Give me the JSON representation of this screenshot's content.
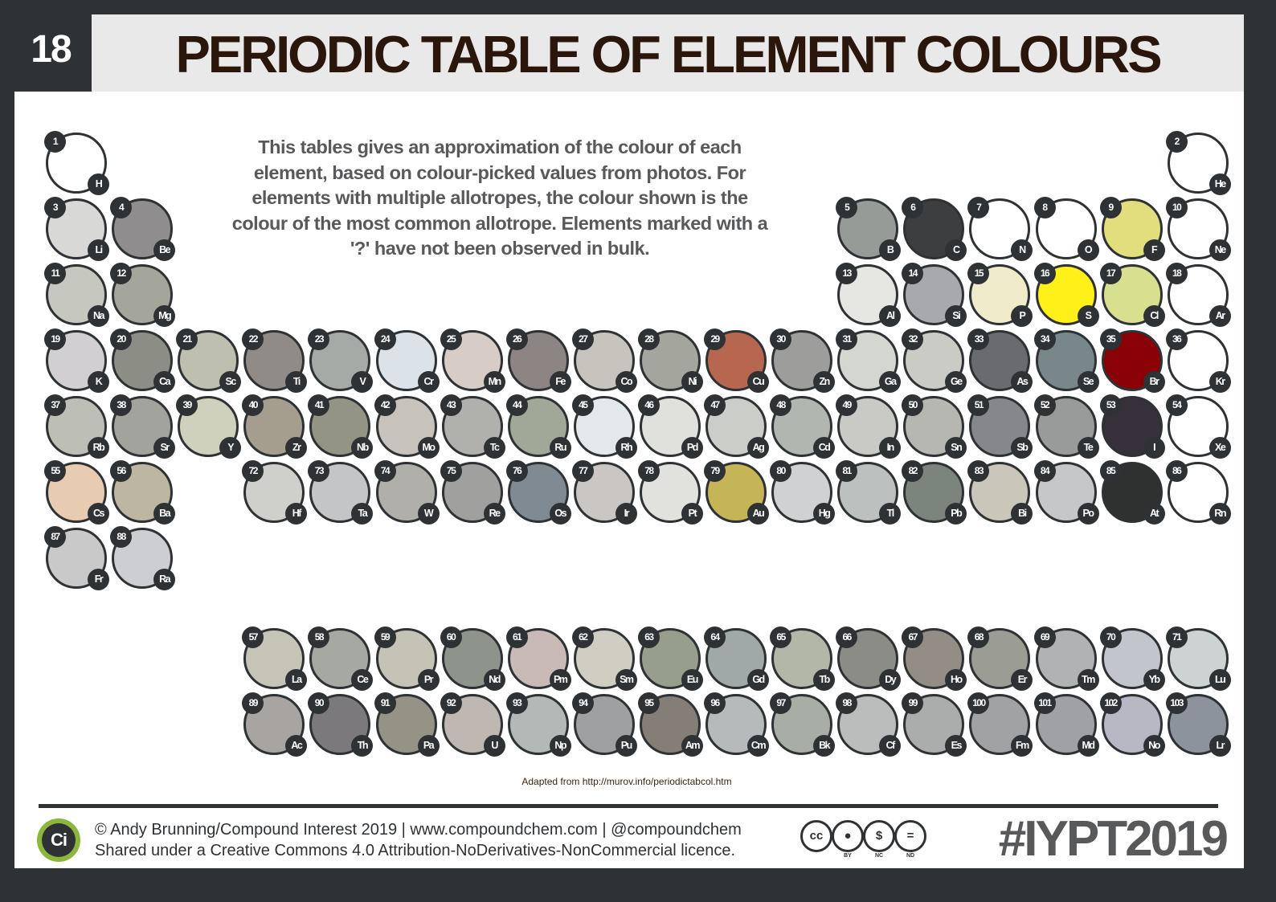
{
  "header": {
    "number": "18",
    "title": "PERIODIC TABLE OF ELEMENT COLOURS"
  },
  "description": "This tables gives an approximation of the colour of each element, based on colour-picked values from photos. For elements with multiple allotropes, the colour shown is the colour of the most common allotrope. Elements marked with a '?' have not been observed in bulk.",
  "source": "Adapted from http://murov.info/periodictabcol.htm",
  "footer": {
    "logo_text": "Ci",
    "credit_line1": "© Andy Brunning/Compound Interest 2019 | www.compoundchem.com | @compoundchem",
    "credit_line2": "Shared under a Creative Commons 4.0 Attribution-NoDerivatives-NonCommercial licence.",
    "cc_icons": [
      {
        "icon": "cc-icon",
        "glyph": "cc",
        "label": ""
      },
      {
        "icon": "by-icon",
        "glyph": "●",
        "label": "BY"
      },
      {
        "icon": "nc-icon",
        "glyph": "$",
        "label": "NC"
      },
      {
        "icon": "nd-icon",
        "glyph": "=",
        "label": "ND"
      }
    ],
    "hashtag": "#IYPT2019"
  },
  "elements": [
    {
      "n": "1",
      "s": "H",
      "c": "#ffffff",
      "r": 1,
      "g": 1
    },
    {
      "n": "2",
      "s": "He",
      "c": "#ffffff",
      "r": 1,
      "g": 18
    },
    {
      "n": "3",
      "s": "Li",
      "c": "#d8d8d6",
      "r": 2,
      "g": 1
    },
    {
      "n": "4",
      "s": "Be",
      "c": "#8f8d8e",
      "r": 2,
      "g": 2
    },
    {
      "n": "5",
      "s": "B",
      "c": "#979b98",
      "r": 2,
      "g": 13
    },
    {
      "n": "6",
      "s": "C",
      "c": "#3c3e40",
      "r": 2,
      "g": 14
    },
    {
      "n": "7",
      "s": "N",
      "c": "#ffffff",
      "r": 2,
      "g": 15
    },
    {
      "n": "8",
      "s": "O",
      "c": "#ffffff",
      "r": 2,
      "g": 16
    },
    {
      "n": "9",
      "s": "F",
      "c": "#e2dd7d",
      "r": 2,
      "g": 17
    },
    {
      "n": "10",
      "s": "Ne",
      "c": "#ffffff",
      "r": 2,
      "g": 18
    },
    {
      "n": "11",
      "s": "Na",
      "c": "#c6c8c0",
      "r": 3,
      "g": 1
    },
    {
      "n": "12",
      "s": "Mg",
      "c": "#a5a69b",
      "r": 3,
      "g": 2
    },
    {
      "n": "13",
      "s": "Al",
      "c": "#e6e7e3",
      "r": 3,
      "g": 13
    },
    {
      "n": "14",
      "s": "Si",
      "c": "#a7a9ac",
      "r": 3,
      "g": 14
    },
    {
      "n": "15",
      "s": "P",
      "c": "#f0eccb",
      "r": 3,
      "g": 15
    },
    {
      "n": "16",
      "s": "S",
      "c": "#fff01a",
      "r": 3,
      "g": 16
    },
    {
      "n": "17",
      "s": "Cl",
      "c": "#d8e090",
      "r": 3,
      "g": 17
    },
    {
      "n": "18",
      "s": "Ar",
      "c": "#ffffff",
      "r": 3,
      "g": 18
    },
    {
      "n": "19",
      "s": "K",
      "c": "#d2cfd3",
      "r": 4,
      "g": 1
    },
    {
      "n": "20",
      "s": "Ca",
      "c": "#8c8e86",
      "r": 4,
      "g": 2
    },
    {
      "n": "21",
      "s": "Sc",
      "c": "#bebfae",
      "r": 4,
      "g": 3
    },
    {
      "n": "22",
      "s": "Ti",
      "c": "#918b88",
      "r": 4,
      "g": 4
    },
    {
      "n": "23",
      "s": "V",
      "c": "#a6aaa6",
      "r": 4,
      "g": 5
    },
    {
      "n": "24",
      "s": "Cr",
      "c": "#dbe3e9",
      "r": 4,
      "g": 6
    },
    {
      "n": "25",
      "s": "Mn",
      "c": "#d8cdc6",
      "r": 4,
      "g": 7
    },
    {
      "n": "26",
      "s": "Fe",
      "c": "#8d8584",
      "r": 4,
      "g": 8
    },
    {
      "n": "27",
      "s": "Co",
      "c": "#c7c3bd",
      "r": 4,
      "g": 9
    },
    {
      "n": "28",
      "s": "Ni",
      "c": "#a4a59d",
      "r": 4,
      "g": 10
    },
    {
      "n": "29",
      "s": "Cu",
      "c": "#b7664f",
      "r": 4,
      "g": 11
    },
    {
      "n": "30",
      "s": "Zn",
      "c": "#9d9e9c",
      "r": 4,
      "g": 12
    },
    {
      "n": "31",
      "s": "Ga",
      "c": "#d4d6d0",
      "r": 4,
      "g": 13
    },
    {
      "n": "32",
      "s": "Ge",
      "c": "#cbcbc6",
      "r": 4,
      "g": 14
    },
    {
      "n": "33",
      "s": "As",
      "c": "#6a6b6e",
      "r": 4,
      "g": 15
    },
    {
      "n": "34",
      "s": "Se",
      "c": "#78888a",
      "r": 4,
      "g": 16
    },
    {
      "n": "35",
      "s": "Br",
      "c": "#8a0007",
      "r": 4,
      "g": 17
    },
    {
      "n": "36",
      "s": "Kr",
      "c": "#ffffff",
      "r": 4,
      "g": 18
    },
    {
      "n": "37",
      "s": "Rb",
      "c": "#bdbfb7",
      "r": 5,
      "g": 1
    },
    {
      "n": "38",
      "s": "Sr",
      "c": "#a2a39c",
      "r": 5,
      "g": 2
    },
    {
      "n": "39",
      "s": "Y",
      "c": "#cfd1bd",
      "r": 5,
      "g": 3
    },
    {
      "n": "40",
      "s": "Zr",
      "c": "#a59e8e",
      "r": 5,
      "g": 4
    },
    {
      "n": "41",
      "s": "Nb",
      "c": "#949485",
      "r": 5,
      "g": 5
    },
    {
      "n": "42",
      "s": "Mo",
      "c": "#c8c2bd",
      "r": 5,
      "g": 6
    },
    {
      "n": "43",
      "s": "Tc",
      "c": "#b0b1ad",
      "r": 5,
      "g": 7
    },
    {
      "n": "44",
      "s": "Ru",
      "c": "#a1a898",
      "r": 5,
      "g": 8
    },
    {
      "n": "45",
      "s": "Rh",
      "c": "#e3e9ea",
      "r": 5,
      "g": 9
    },
    {
      "n": "46",
      "s": "Pd",
      "c": "#e0e1dd",
      "r": 5,
      "g": 10
    },
    {
      "n": "47",
      "s": "Ag",
      "c": "#cbcdc8",
      "r": 5,
      "g": 11
    },
    {
      "n": "48",
      "s": "Cd",
      "c": "#b2b6b0",
      "r": 5,
      "g": 12
    },
    {
      "n": "49",
      "s": "In",
      "c": "#c9cac6",
      "r": 5,
      "g": 13
    },
    {
      "n": "50",
      "s": "Sn",
      "c": "#b5b7b0",
      "r": 5,
      "g": 14
    },
    {
      "n": "51",
      "s": "Sb",
      "c": "#85878b",
      "r": 5,
      "g": 15
    },
    {
      "n": "52",
      "s": "Te",
      "c": "#989b9a",
      "r": 5,
      "g": 16
    },
    {
      "n": "53",
      "s": "I",
      "c": "#36303b",
      "r": 5,
      "g": 17
    },
    {
      "n": "54",
      "s": "Xe",
      "c": "#ffffff",
      "r": 5,
      "g": 18
    },
    {
      "n": "55",
      "s": "Cs",
      "c": "#e8ccb2",
      "r": 6,
      "g": 1
    },
    {
      "n": "56",
      "s": "Ba",
      "c": "#bdb6a2",
      "r": 6,
      "g": 2
    },
    {
      "n": "72",
      "s": "Hf",
      "c": "#cfcfcc",
      "r": 6,
      "g": 4
    },
    {
      "n": "73",
      "s": "Ta",
      "c": "#c4c5c7",
      "r": 6,
      "g": 5
    },
    {
      "n": "74",
      "s": "W",
      "c": "#b0afaa",
      "r": 6,
      "g": 6
    },
    {
      "n": "75",
      "s": "Re",
      "c": "#a0a09e",
      "r": 6,
      "g": 7
    },
    {
      "n": "76",
      "s": "Os",
      "c": "#7f8a93",
      "r": 6,
      "g": 8
    },
    {
      "n": "77",
      "s": "Ir",
      "c": "#cac6c4",
      "r": 6,
      "g": 9
    },
    {
      "n": "78",
      "s": "Pt",
      "c": "#e1e2dd",
      "r": 6,
      "g": 10
    },
    {
      "n": "79",
      "s": "Au",
      "c": "#c6b556",
      "r": 6,
      "g": 11
    },
    {
      "n": "80",
      "s": "Hg",
      "c": "#d0d1d3",
      "r": 6,
      "g": 12
    },
    {
      "n": "81",
      "s": "Tl",
      "c": "#bcc0be",
      "r": 6,
      "g": 13
    },
    {
      "n": "82",
      "s": "Pb",
      "c": "#7c847e",
      "r": 6,
      "g": 14
    },
    {
      "n": "83",
      "s": "Bi",
      "c": "#cbc6ba",
      "r": 6,
      "g": 15
    },
    {
      "n": "84",
      "s": "Po",
      "c": "#c6c7c9",
      "r": 6,
      "g": 16
    },
    {
      "n": "85",
      "s": "At",
      "c": "#2f3130",
      "r": 6,
      "g": 17
    },
    {
      "n": "86",
      "s": "Rn",
      "c": "#ffffff",
      "r": 6,
      "g": 18
    },
    {
      "n": "87",
      "s": "Fr",
      "c": "#c9c9c9",
      "r": 7,
      "g": 1
    },
    {
      "n": "88",
      "s": "Ra",
      "c": "#ccced1",
      "r": 7,
      "g": 2
    },
    {
      "n": "57",
      "s": "La",
      "c": "#c6c4b6",
      "r": 9,
      "g": 4
    },
    {
      "n": "58",
      "s": "Ce",
      "c": "#a6a9a1",
      "r": 9,
      "g": 5
    },
    {
      "n": "59",
      "s": "Pr",
      "c": "#c5c3b6",
      "r": 9,
      "g": 6
    },
    {
      "n": "60",
      "s": "Nd",
      "c": "#8e938c",
      "r": 9,
      "g": 7
    },
    {
      "n": "61",
      "s": "Pm",
      "c": "#c9bab8",
      "r": 9,
      "g": 8
    },
    {
      "n": "62",
      "s": "Sm",
      "c": "#d0cdc2",
      "r": 9,
      "g": 9
    },
    {
      "n": "63",
      "s": "Eu",
      "c": "#979e8c",
      "r": 9,
      "g": 10
    },
    {
      "n": "64",
      "s": "Gd",
      "c": "#a1a8a8",
      "r": 9,
      "g": 11
    },
    {
      "n": "65",
      "s": "Tb",
      "c": "#b3b7a7",
      "r": 9,
      "g": 12
    },
    {
      "n": "66",
      "s": "Dy",
      "c": "#8a8c85",
      "r": 9,
      "g": 13
    },
    {
      "n": "67",
      "s": "Ho",
      "c": "#938d86",
      "r": 9,
      "g": 14
    },
    {
      "n": "68",
      "s": "Er",
      "c": "#9b9c94",
      "r": 9,
      "g": 15
    },
    {
      "n": "69",
      "s": "Tm",
      "c": "#b0b2b3",
      "r": 9,
      "g": 16
    },
    {
      "n": "70",
      "s": "Yb",
      "c": "#c3c5cc",
      "r": 9,
      "g": 17
    },
    {
      "n": "71",
      "s": "Lu",
      "c": "#cdd3d3",
      "r": 9,
      "g": 18
    },
    {
      "n": "89",
      "s": "Ac",
      "c": "#a7a4a2",
      "r": 10,
      "g": 4
    },
    {
      "n": "90",
      "s": "Th",
      "c": "#7b797b",
      "r": 10,
      "g": 5
    },
    {
      "n": "91",
      "s": "Pa",
      "c": "#959385",
      "r": 10,
      "g": 6
    },
    {
      "n": "92",
      "s": "U",
      "c": "#bfb7b1",
      "r": 10,
      "g": 7
    },
    {
      "n": "93",
      "s": "Np",
      "c": "#b2b9b6",
      "r": 10,
      "g": 8
    },
    {
      "n": "94",
      "s": "Pu",
      "c": "#9fa0a1",
      "r": 10,
      "g": 9
    },
    {
      "n": "95",
      "s": "Am",
      "c": "#857e77",
      "r": 10,
      "g": 10
    },
    {
      "n": "96",
      "s": "Cm",
      "c": "#b7babb",
      "r": 10,
      "g": 11
    },
    {
      "n": "97",
      "s": "Bk",
      "c": "#a8aea6",
      "r": 10,
      "g": 12
    },
    {
      "n": "98",
      "s": "Cf",
      "c": "#bbbcbc",
      "r": 10,
      "g": 13
    },
    {
      "n": "99",
      "s": "Es",
      "c": "#abacac",
      "r": 10,
      "g": 14
    },
    {
      "n": "100",
      "s": "Fm",
      "c": "#a1a2a4",
      "r": 10,
      "g": 15
    },
    {
      "n": "101",
      "s": "Md",
      "c": "#9fa1a4",
      "r": 10,
      "g": 16
    },
    {
      "n": "102",
      "s": "No",
      "c": "#b7b8c3",
      "r": 10,
      "g": 17
    },
    {
      "n": "103",
      "s": "Lr",
      "c": "#8d939c",
      "r": 10,
      "g": 18
    }
  ]
}
